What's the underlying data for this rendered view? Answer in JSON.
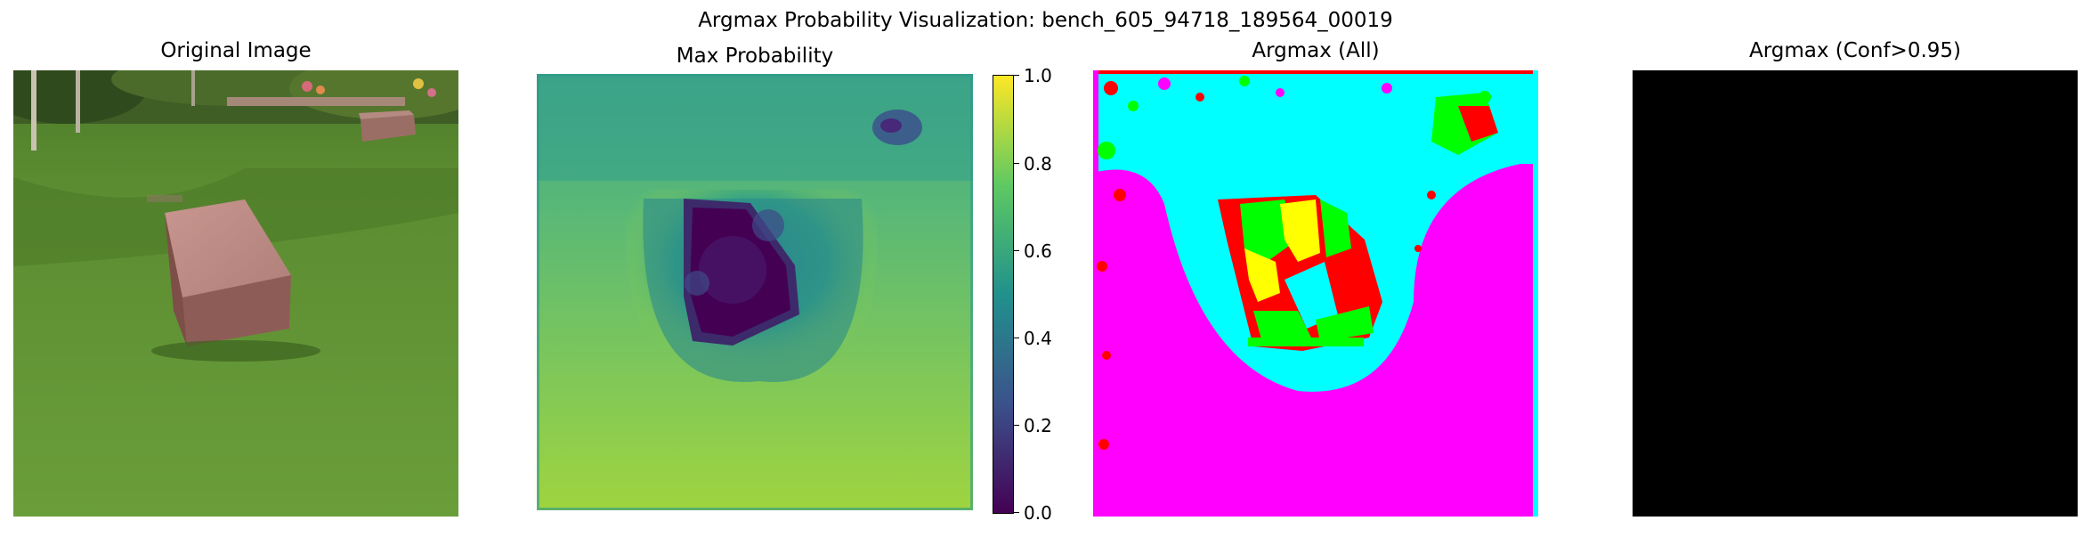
{
  "figure": {
    "title": "Argmax Probability Visualization: bench_605_94718_189564_00019"
  },
  "panels": [
    {
      "title": "Original Image",
      "content": "photo of a stone bench on grass"
    },
    {
      "title": "Max Probability",
      "content": "viridis heatmap"
    },
    {
      "title": "Argmax (All)",
      "content": "segmentation class map"
    },
    {
      "title": "Argmax (Conf>0.95)",
      "content": "solid black"
    }
  ],
  "colorbar": {
    "ticks": [
      "0.0",
      "0.2",
      "0.4",
      "0.6",
      "0.8",
      "1.0"
    ],
    "colormap": "viridis",
    "range": [
      0.0,
      1.0
    ]
  },
  "colors": {
    "viridis_low": "#440154",
    "viridis_mid": "#21918c",
    "viridis_high": "#fde725",
    "seg_magenta": "#ff00ff",
    "seg_cyan": "#00ffff",
    "seg_green": "#00ff00",
    "seg_yellow": "#ffff00",
    "seg_red": "#ff0000",
    "black": "#000000"
  }
}
